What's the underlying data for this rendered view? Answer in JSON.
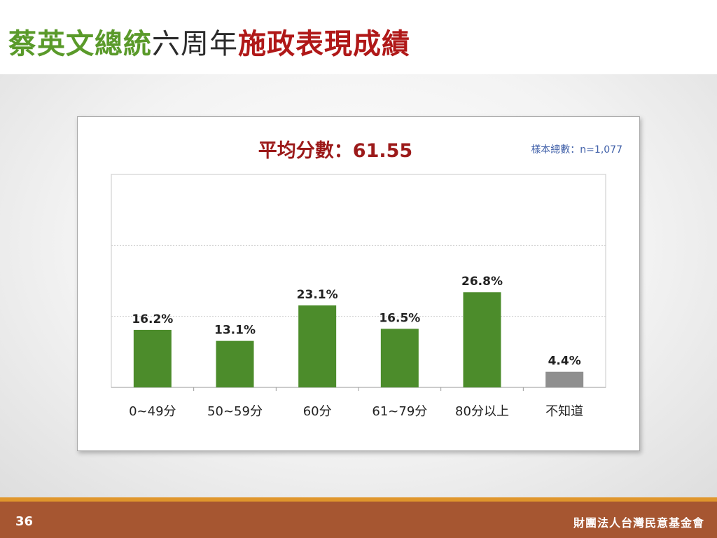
{
  "slide": {
    "title_part1": "蔡英文總統",
    "title_part2": "六周年",
    "title_part3": "施政表現成績",
    "page_number": "36",
    "organization": "財團法人台灣民意基金會"
  },
  "colors": {
    "green_title": "#5a9a2a",
    "red_title": "#b01818",
    "bar_green": "#4c8c2b",
    "bar_gray": "#8f8f8f",
    "footer_brown": "#a65631",
    "footer_orange": "#e0962c"
  },
  "chart_data": {
    "type": "bar",
    "title": "平均分數：61.55",
    "annotation": "樣本總數：n=1,077",
    "categories": [
      "0~49分",
      "50~59分",
      "60分",
      "61~79分",
      "80分以上",
      "不知道"
    ],
    "values": [
      16.2,
      13.1,
      23.1,
      16.5,
      26.8,
      4.4
    ],
    "value_labels": [
      "16.2%",
      "13.1%",
      "23.1%",
      "16.5%",
      "26.8%",
      "4.4%"
    ],
    "highlight_last_gray": true,
    "ylim": [
      0,
      60
    ],
    "grid": "dashed horizontal",
    "legend": "none"
  }
}
